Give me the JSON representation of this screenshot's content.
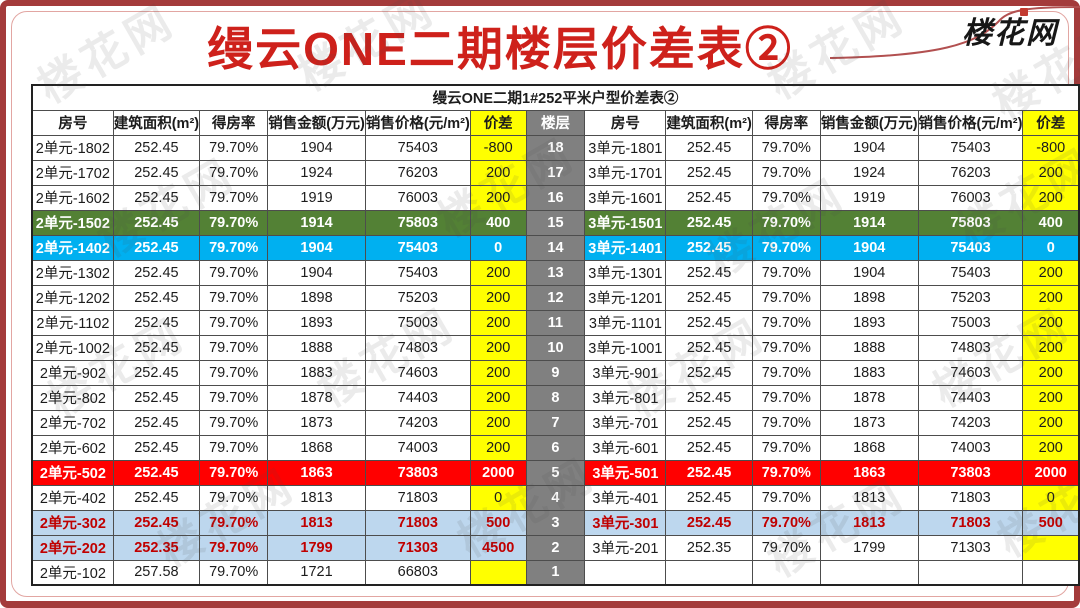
{
  "page": {
    "title": "缦云ONE二期楼层价差表②",
    "logo": "楼花网",
    "watermark": "楼花网"
  },
  "colors": {
    "frame_border": "#A43B3B",
    "title_red": "#CE211B",
    "highlight_yellow": "#FFFF00",
    "floor_gray": "#808080",
    "row_green": "#538135",
    "row_cyan": "#00B0F0",
    "row_red": "#FF0000",
    "row_lightblue": "#BDD7EE",
    "lightblue_text_red": "#C00000"
  },
  "table": {
    "subtitle": "缦云ONE二期1#252平米户型价差表②",
    "col_headers": [
      "房号",
      "建筑面积(m²)",
      "得房率",
      "销售金额(万元)",
      "销售价格(元/m²)",
      "价差"
    ],
    "floor_header": "楼层",
    "rows": [
      {
        "floor": "18",
        "style_left": "n",
        "style_right": "n",
        "left": [
          "2单元-1802",
          "252.45",
          "79.70%",
          "1904",
          "75403",
          "-800"
        ],
        "right": [
          "3单元-1801",
          "252.45",
          "79.70%",
          "1904",
          "75403",
          "-800"
        ]
      },
      {
        "floor": "17",
        "style_left": "n",
        "style_right": "n",
        "left": [
          "2单元-1702",
          "252.45",
          "79.70%",
          "1924",
          "76203",
          "200"
        ],
        "right": [
          "3单元-1701",
          "252.45",
          "79.70%",
          "1924",
          "76203",
          "200"
        ]
      },
      {
        "floor": "16",
        "style_left": "n",
        "style_right": "n",
        "left": [
          "2单元-1602",
          "252.45",
          "79.70%",
          "1919",
          "76003",
          "200"
        ],
        "right": [
          "3单元-1601",
          "252.45",
          "79.70%",
          "1919",
          "76003",
          "200"
        ]
      },
      {
        "floor": "15",
        "style_left": "g",
        "style_right": "g",
        "left": [
          "2单元-1502",
          "252.45",
          "79.70%",
          "1914",
          "75803",
          "400"
        ],
        "right": [
          "3单元-1501",
          "252.45",
          "79.70%",
          "1914",
          "75803",
          "400"
        ]
      },
      {
        "floor": "14",
        "style_left": "c",
        "style_right": "c",
        "left": [
          "2单元-1402",
          "252.45",
          "79.70%",
          "1904",
          "75403",
          "0"
        ],
        "right": [
          "3单元-1401",
          "252.45",
          "79.70%",
          "1904",
          "75403",
          "0"
        ]
      },
      {
        "floor": "13",
        "style_left": "n",
        "style_right": "n",
        "left": [
          "2单元-1302",
          "252.45",
          "79.70%",
          "1904",
          "75403",
          "200"
        ],
        "right": [
          "3单元-1301",
          "252.45",
          "79.70%",
          "1904",
          "75403",
          "200"
        ]
      },
      {
        "floor": "12",
        "style_left": "n",
        "style_right": "n",
        "left": [
          "2单元-1202",
          "252.45",
          "79.70%",
          "1898",
          "75203",
          "200"
        ],
        "right": [
          "3单元-1201",
          "252.45",
          "79.70%",
          "1898",
          "75203",
          "200"
        ]
      },
      {
        "floor": "11",
        "style_left": "n",
        "style_right": "n",
        "left": [
          "2单元-1102",
          "252.45",
          "79.70%",
          "1893",
          "75003",
          "200"
        ],
        "right": [
          "3单元-1101",
          "252.45",
          "79.70%",
          "1893",
          "75003",
          "200"
        ]
      },
      {
        "floor": "10",
        "style_left": "n",
        "style_right": "n",
        "left": [
          "2单元-1002",
          "252.45",
          "79.70%",
          "1888",
          "74803",
          "200"
        ],
        "right": [
          "3单元-1001",
          "252.45",
          "79.70%",
          "1888",
          "74803",
          "200"
        ]
      },
      {
        "floor": "9",
        "style_left": "n",
        "style_right": "n",
        "left": [
          "2单元-902",
          "252.45",
          "79.70%",
          "1883",
          "74603",
          "200"
        ],
        "right": [
          "3单元-901",
          "252.45",
          "79.70%",
          "1883",
          "74603",
          "200"
        ]
      },
      {
        "floor": "8",
        "style_left": "n",
        "style_right": "n",
        "left": [
          "2单元-802",
          "252.45",
          "79.70%",
          "1878",
          "74403",
          "200"
        ],
        "right": [
          "3单元-801",
          "252.45",
          "79.70%",
          "1878",
          "74403",
          "200"
        ]
      },
      {
        "floor": "7",
        "style_left": "n",
        "style_right": "n",
        "left": [
          "2单元-702",
          "252.45",
          "79.70%",
          "1873",
          "74203",
          "200"
        ],
        "right": [
          "3单元-701",
          "252.45",
          "79.70%",
          "1873",
          "74203",
          "200"
        ]
      },
      {
        "floor": "6",
        "style_left": "n",
        "style_right": "n",
        "left": [
          "2单元-602",
          "252.45",
          "79.70%",
          "1868",
          "74003",
          "200"
        ],
        "right": [
          "3单元-601",
          "252.45",
          "79.70%",
          "1868",
          "74003",
          "200"
        ]
      },
      {
        "floor": "5",
        "style_left": "r",
        "style_right": "r",
        "left": [
          "2单元-502",
          "252.45",
          "79.70%",
          "1863",
          "73803",
          "2000"
        ],
        "right": [
          "3单元-501",
          "252.45",
          "79.70%",
          "1863",
          "73803",
          "2000"
        ]
      },
      {
        "floor": "4",
        "style_left": "n",
        "style_right": "n",
        "left": [
          "2单元-402",
          "252.45",
          "79.70%",
          "1813",
          "71803",
          "0"
        ],
        "right": [
          "3单元-401",
          "252.45",
          "79.70%",
          "1813",
          "71803",
          "0"
        ]
      },
      {
        "floor": "3",
        "style_left": "b",
        "style_right": "b",
        "left": [
          "2单元-302",
          "252.45",
          "79.70%",
          "1813",
          "71803",
          "500"
        ],
        "right": [
          "3单元-301",
          "252.45",
          "79.70%",
          "1813",
          "71803",
          "500"
        ]
      },
      {
        "floor": "2",
        "style_left": "b",
        "style_right": "n",
        "left": [
          "2单元-202",
          "252.35",
          "79.70%",
          "1799",
          "71303",
          "4500"
        ],
        "right": [
          "3单元-201",
          "252.35",
          "79.70%",
          "1799",
          "71303",
          ""
        ]
      },
      {
        "floor": "1",
        "style_left": "n",
        "style_right": "e",
        "left": [
          "2单元-102",
          "257.58",
          "79.70%",
          "1721",
          "66803",
          ""
        ],
        "right": [
          "",
          "",
          "",
          "",
          "",
          ""
        ]
      }
    ]
  }
}
